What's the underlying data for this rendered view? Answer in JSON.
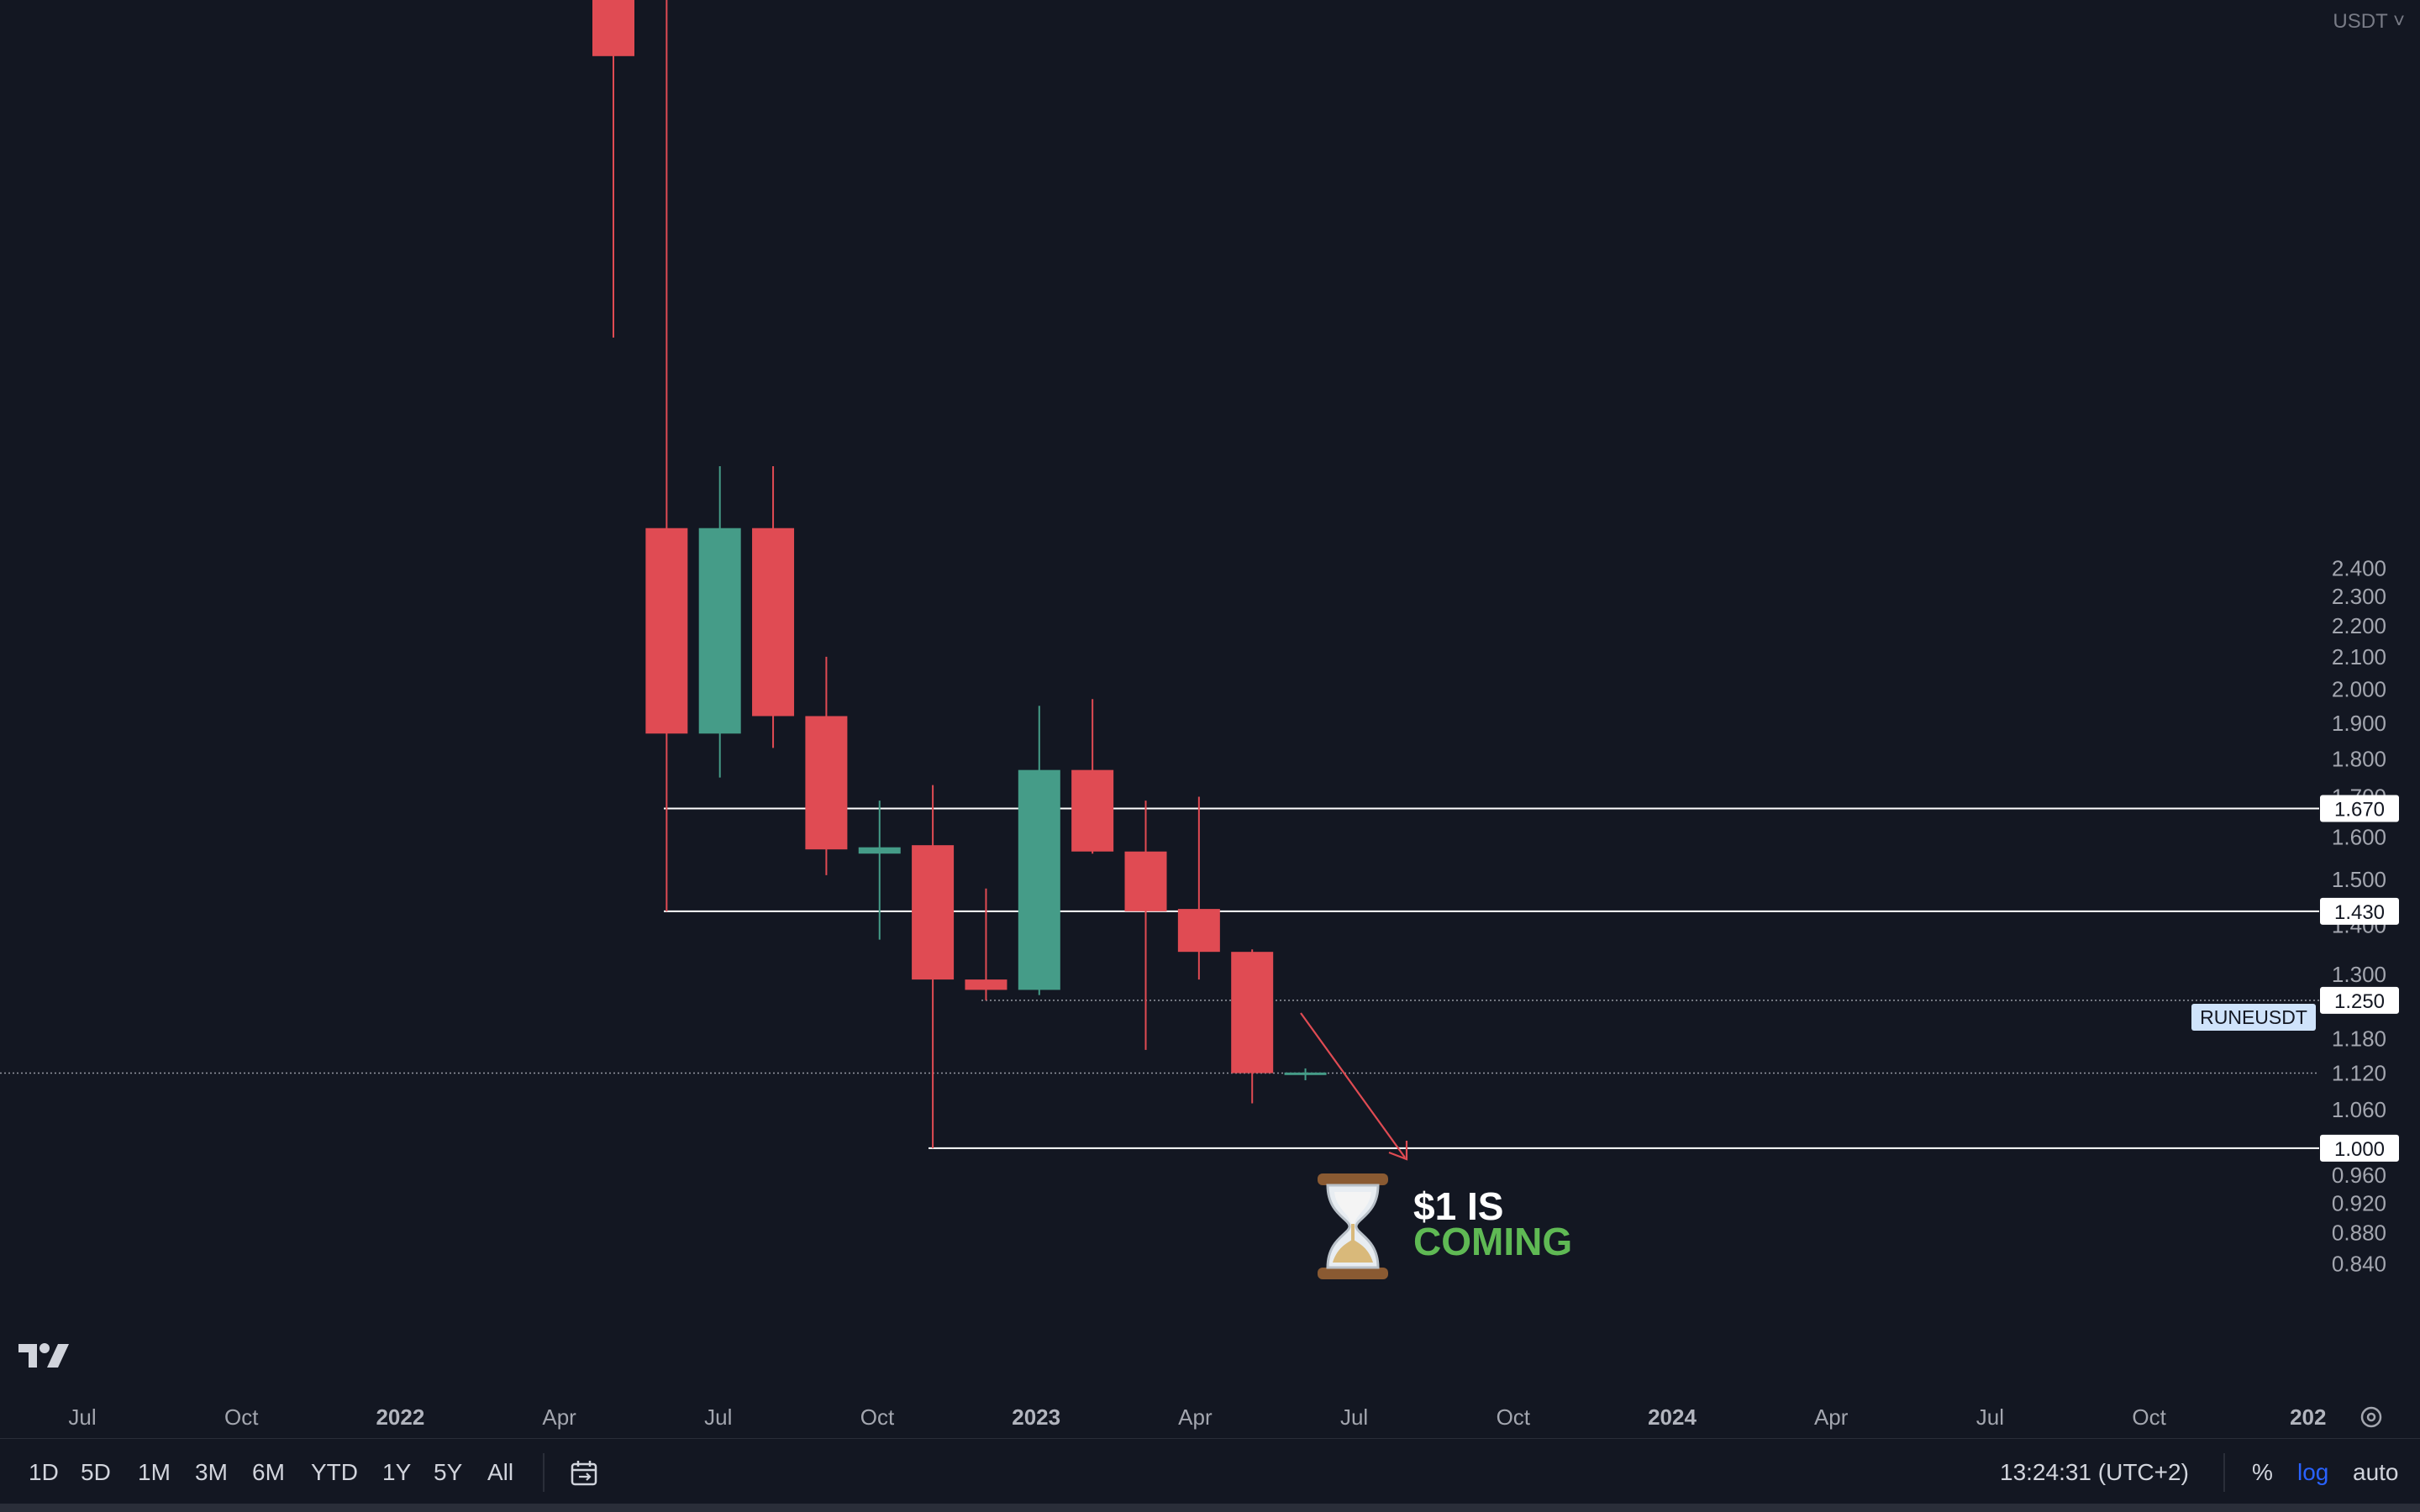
{
  "chart_data": {
    "type": "candlestick",
    "symbol": "RUNEUSDT",
    "currency": "USDT",
    "scale": "log",
    "price_ticks": [
      "2.400",
      "2.300",
      "2.200",
      "2.100",
      "2.000",
      "1.900",
      "1.800",
      "1.700",
      "1.600",
      "1.500",
      "1.400",
      "1.300",
      "1.180",
      "1.120",
      "1.060",
      "0.960",
      "0.920",
      "0.880",
      "0.840"
    ],
    "time_ticks": [
      {
        "label": "Jul",
        "bold": false
      },
      {
        "label": "Oct",
        "bold": false
      },
      {
        "label": "2022",
        "bold": true
      },
      {
        "label": "Apr",
        "bold": false
      },
      {
        "label": "Jul",
        "bold": false
      },
      {
        "label": "Oct",
        "bold": false
      },
      {
        "label": "2023",
        "bold": true
      },
      {
        "label": "Apr",
        "bold": false
      },
      {
        "label": "Jul",
        "bold": false
      },
      {
        "label": "Oct",
        "bold": false
      },
      {
        "label": "2024",
        "bold": true
      },
      {
        "label": "Apr",
        "bold": false
      },
      {
        "label": "Jul",
        "bold": false
      },
      {
        "label": "Oct",
        "bold": false
      },
      {
        "label": "202",
        "bold": true
      }
    ],
    "candles": [
      {
        "date": "2022-05",
        "open": 6.0,
        "high": 9.0,
        "low": 3.4,
        "close": 5.2
      },
      {
        "date": "2022-06",
        "open": 2.55,
        "high": 9.0,
        "low": 1.43,
        "close": 1.87
      },
      {
        "date": "2022-07",
        "open": 1.87,
        "high": 2.8,
        "low": 1.75,
        "close": 2.55
      },
      {
        "date": "2022-08",
        "open": 2.55,
        "high": 2.8,
        "low": 1.83,
        "close": 1.92
      },
      {
        "date": "2022-09",
        "open": 1.92,
        "high": 2.1,
        "low": 1.51,
        "close": 1.57
      },
      {
        "date": "2022-10",
        "open": 1.56,
        "high": 1.69,
        "low": 1.37,
        "close": 1.575
      },
      {
        "date": "2022-11",
        "open": 1.58,
        "high": 1.73,
        "low": 1.0,
        "close": 1.29
      },
      {
        "date": "2022-12",
        "open": 1.29,
        "high": 1.48,
        "low": 1.25,
        "close": 1.27
      },
      {
        "date": "2022-12-b",
        "open": 1.27,
        "high": 1.95,
        "low": 1.26,
        "close": 1.77
      },
      {
        "date": "2023-01",
        "open": 1.77,
        "high": 1.97,
        "low": 1.56,
        "close": 1.565
      },
      {
        "date": "2023-02",
        "open": 1.565,
        "high": 1.69,
        "low": 1.16,
        "close": 1.43
      },
      {
        "date": "2023-03",
        "open": 1.435,
        "high": 1.7,
        "low": 1.29,
        "close": 1.345
      },
      {
        "date": "2023-04",
        "open": 1.345,
        "high": 1.35,
        "low": 1.07,
        "close": 1.12
      },
      {
        "date": "2023-05",
        "open": 1.12,
        "high": 1.128,
        "low": 1.108,
        "close": 1.121
      }
    ],
    "levels": [
      {
        "value": 1.67,
        "label": "1.670",
        "style": "solid"
      },
      {
        "value": 1.43,
        "label": "1.430",
        "style": "solid"
      },
      {
        "value": 1.25,
        "label": "1.250",
        "style": "dotted"
      },
      {
        "value": 1.0,
        "label": "1.000",
        "style": "solid"
      }
    ],
    "last_price_label": "RUNEUSDT",
    "last_price": 1.12,
    "annotation": {
      "line1": "$1 IS",
      "line2": "COMING"
    },
    "colors": {
      "up": "#459c88",
      "down": "#e04b53",
      "background": "#131722",
      "text": "#a3a6af",
      "line": "#ffffff",
      "badge": "#cfe3fb",
      "log_active": "#2962ff",
      "annotation_green": "#5fb954"
    }
  },
  "toolbar": {
    "ranges": [
      "1D",
      "5D",
      "1M",
      "3M",
      "6M",
      "YTD",
      "1Y",
      "5Y",
      "All"
    ],
    "time": "13:24:31 (UTC+2)",
    "percent": "%",
    "log": "log",
    "auto": "auto"
  }
}
